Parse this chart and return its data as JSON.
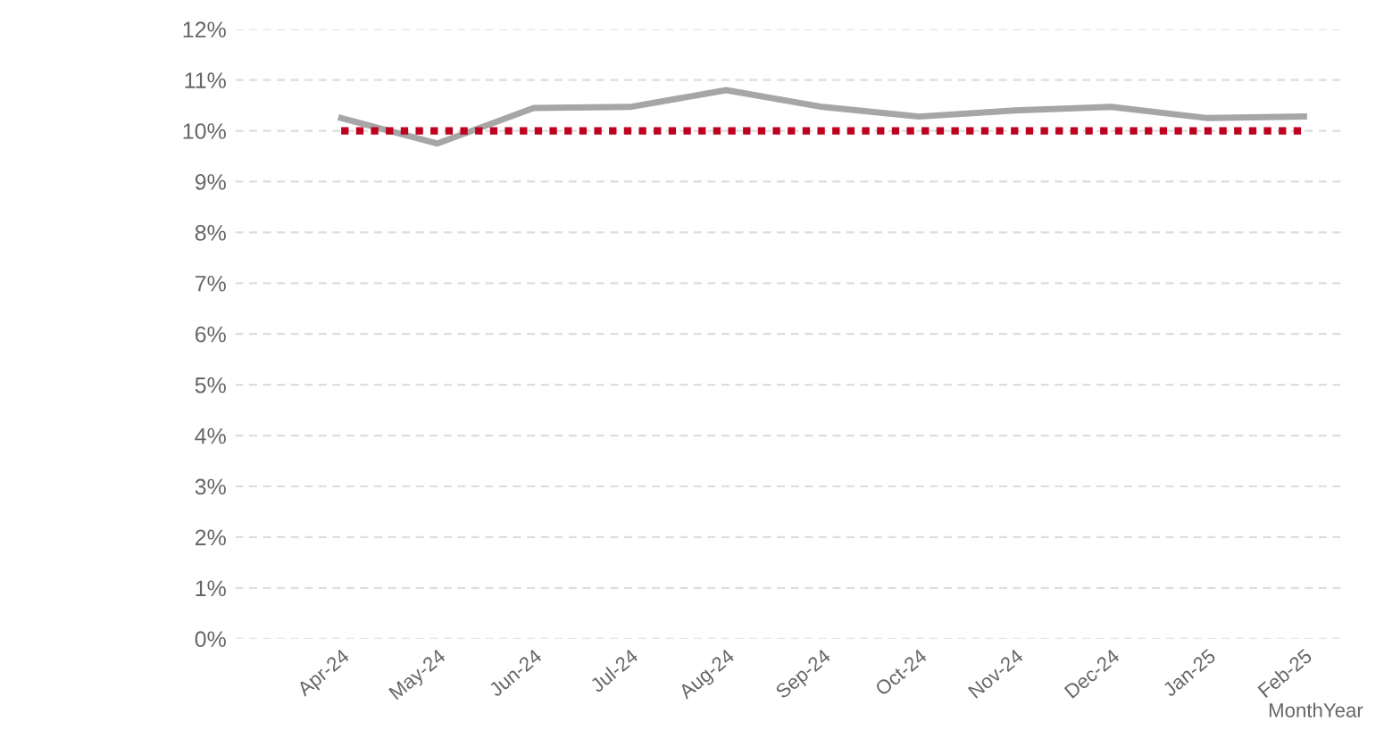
{
  "chart_data": {
    "type": "line",
    "xlabel": "MonthYear",
    "categories": [
      "Apr-24",
      "May-24",
      "Jun-24",
      "Jul-24",
      "Aug-24",
      "Sep-24",
      "Oct-24",
      "Nov-24",
      "Dec-24",
      "Jan-25",
      "Feb-25"
    ],
    "series": [
      {
        "color": "#a6a6a6",
        "values": [
          10.25,
          9.75,
          10.45,
          10.47,
          10.8,
          10.47,
          10.28,
          10.4,
          10.47,
          10.25,
          10.28
        ]
      }
    ],
    "ref_lines": [
      {
        "axis": "y",
        "value": 10,
        "color": "#c00020",
        "line_style": "dotted"
      }
    ],
    "ylim": [
      0,
      12
    ],
    "yticks": [
      {
        "value": 0,
        "label": "0%"
      },
      {
        "value": 1,
        "label": "1%"
      },
      {
        "value": 2,
        "label": "2%"
      },
      {
        "value": 3,
        "label": "3%"
      },
      {
        "value": 4,
        "label": "4%"
      },
      {
        "value": 5,
        "label": "5%"
      },
      {
        "value": 6,
        "label": "6%"
      },
      {
        "value": 7,
        "label": "7%"
      },
      {
        "value": 8,
        "label": "8%"
      },
      {
        "value": 9,
        "label": "9%"
      },
      {
        "value": 10,
        "label": "10%"
      },
      {
        "value": 11,
        "label": "11%"
      },
      {
        "value": 12,
        "label": "12%"
      }
    ],
    "grid": "y",
    "marker": "none",
    "line_style": "solid"
  }
}
